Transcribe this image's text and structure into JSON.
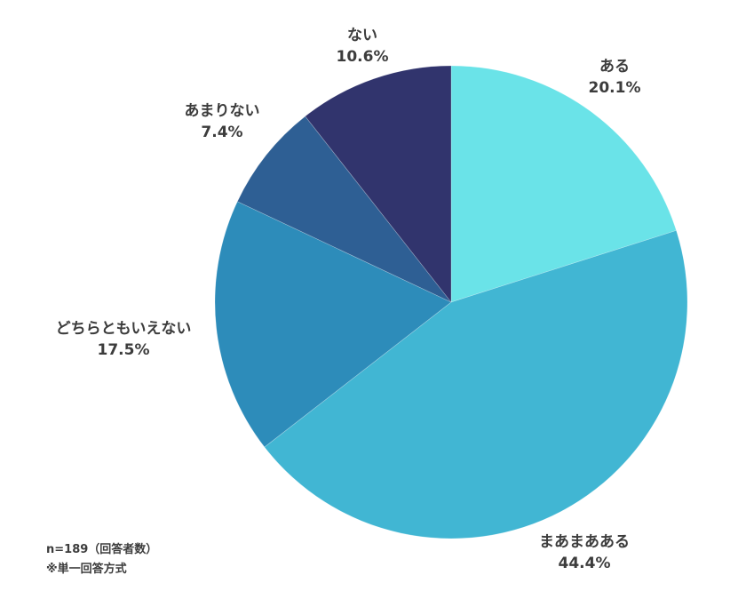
{
  "chart_data": {
    "type": "pie",
    "title": "",
    "start_angle_deg": 0,
    "direction": "clockwise",
    "categories": [
      "ある",
      "まあまあある",
      "どちらともいえない",
      "あまりない",
      "ない"
    ],
    "values": [
      20.1,
      44.4,
      17.5,
      7.4,
      10.6
    ],
    "value_labels": [
      "20.1%",
      "44.4%",
      "17.5%",
      "7.4%",
      "10.6%"
    ],
    "colors": [
      "#6ae3e8",
      "#41b6d3",
      "#2d8cba",
      "#2e5f94",
      "#31346d"
    ],
    "legend": "none (labels placed outside slices)"
  },
  "labels": [
    {
      "name": "ある",
      "pct": "20.1%"
    },
    {
      "name": "まあまあある",
      "pct": "44.4%"
    },
    {
      "name": "どちらともいえない",
      "pct": "17.5%"
    },
    {
      "name": "あまりない",
      "pct": "7.4%"
    },
    {
      "name": "ない",
      "pct": "10.6%"
    }
  ],
  "notes": {
    "sample": "n=189（回答者数）",
    "method": "※単一回答方式"
  }
}
